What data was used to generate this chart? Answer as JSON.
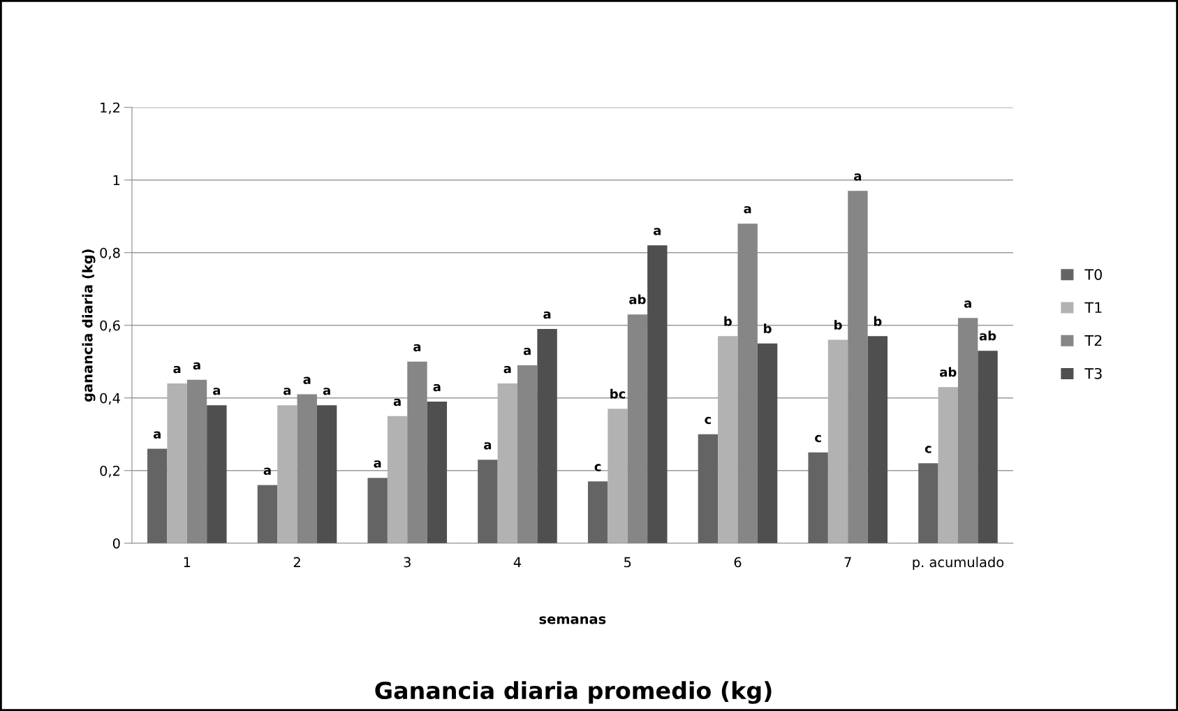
{
  "chart_data": {
    "type": "bar",
    "title": "Ganancia diaria promedio (kg)",
    "xlabel": "semanas",
    "ylabel": "ganancia diaria (kg)",
    "categories": [
      "1",
      "2",
      "3",
      "4",
      "5",
      "6",
      "7",
      "p. acumulado"
    ],
    "series": [
      {
        "name": "T0",
        "color": "#646464",
        "values": [
          0.26,
          0.16,
          0.18,
          0.23,
          0.17,
          0.3,
          0.25,
          0.22
        ],
        "value_labels": [
          "a",
          "a",
          "a",
          "a",
          "c",
          "c",
          "c",
          "c"
        ]
      },
      {
        "name": "T1",
        "color": "#b2b2b2",
        "values": [
          0.44,
          0.38,
          0.35,
          0.44,
          0.37,
          0.57,
          0.56,
          0.43
        ],
        "value_labels": [
          "a",
          "a",
          "a",
          "a",
          "bc",
          "b",
          "b",
          "ab"
        ]
      },
      {
        "name": "T2",
        "color": "#868686",
        "values": [
          0.45,
          0.41,
          0.5,
          0.49,
          0.63,
          0.88,
          0.97,
          0.62
        ],
        "value_labels": [
          "a",
          "a",
          "a",
          "a",
          "ab",
          "a",
          "a",
          "a"
        ]
      },
      {
        "name": "T3",
        "color": "#4f4f4f",
        "values": [
          0.38,
          0.38,
          0.39,
          0.59,
          0.82,
          0.55,
          0.57,
          0.53
        ],
        "value_labels": [
          "a",
          "a",
          "a",
          "a",
          "a",
          "b",
          "b",
          "ab"
        ]
      }
    ],
    "ylim": [
      0,
      1.2
    ],
    "yticks": [
      0,
      {
        "value": 0.2,
        "label": "0,2"
      },
      {
        "value": 0.4,
        "label": "0,4"
      },
      {
        "value": 0.6,
        "label": "0,6"
      },
      {
        "value": 0.8,
        "label": "0,8"
      },
      1,
      {
        "value": 1.2,
        "label": "1,2"
      }
    ],
    "grid": "y",
    "legend": "right"
  }
}
